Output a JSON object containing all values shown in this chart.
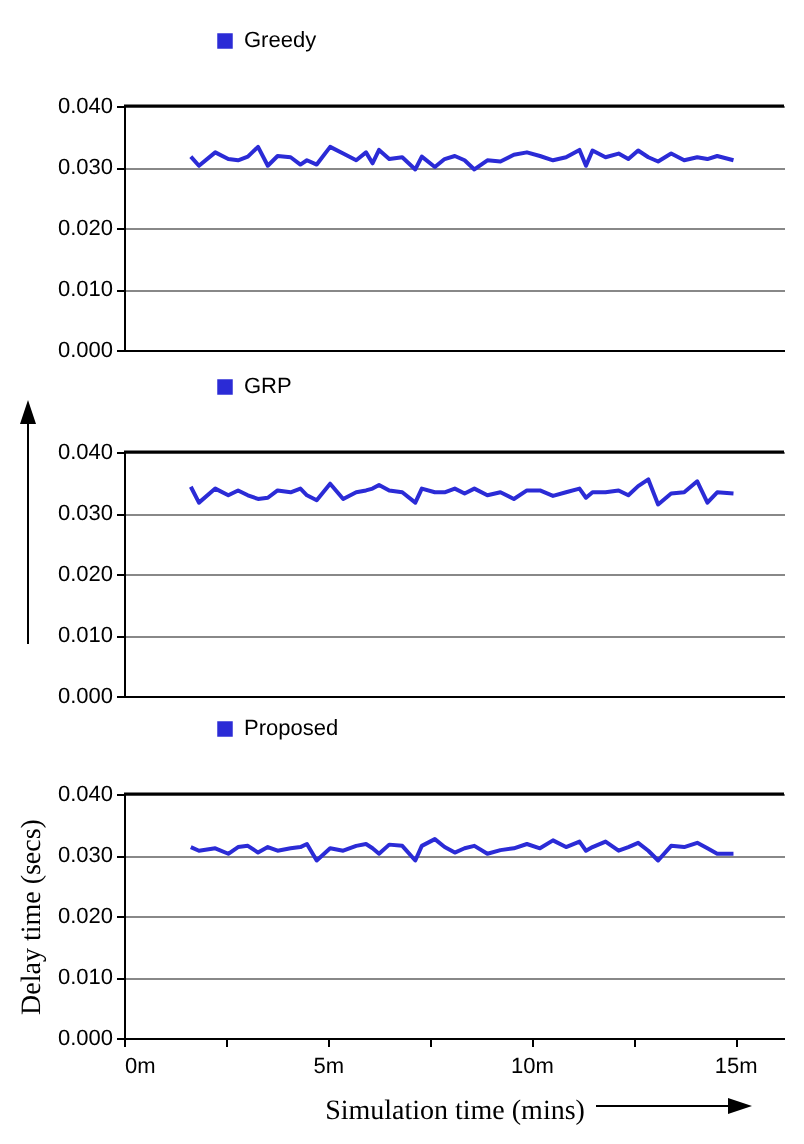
{
  "chart_data": [
    {
      "type": "line",
      "legend": "top",
      "grid": "y",
      "marker": "none",
      "line_style": "solid",
      "tick_labels": "y",
      "xlim": [
        0,
        16.2
      ],
      "ylim": [
        0,
        0.04
      ],
      "yticks": [
        {
          "value": 0,
          "label": "0.000"
        },
        {
          "value": 0.01,
          "label": "0.010"
        },
        {
          "value": 0.02,
          "label": "0.020"
        },
        {
          "value": 0.03,
          "label": "0.030"
        },
        {
          "value": 0.04,
          "label": "0.040"
        }
      ],
      "x": [
        1.64,
        1.84,
        2.24,
        2.56,
        2.8,
        3.04,
        3.29,
        3.53,
        3.77,
        4.09,
        4.33,
        4.49,
        4.73,
        5.06,
        5.38,
        5.7,
        5.94,
        6.1,
        6.26,
        6.51,
        6.83,
        7.15,
        7.31,
        7.63,
        7.87,
        8.12,
        8.36,
        8.6,
        8.92,
        9.24,
        9.57,
        9.89,
        10.21,
        10.53,
        10.85,
        11.18,
        11.34,
        11.5,
        11.82,
        12.14,
        12.38,
        12.62,
        12.87,
        13.11,
        13.43,
        13.75,
        14.07,
        14.32,
        14.56,
        14.96
      ],
      "series": [
        {
          "name": "Greedy",
          "color": "#2b2bd6",
          "values": [
            0.0317,
            0.0302,
            0.0324,
            0.0313,
            0.0311,
            0.0317,
            0.0333,
            0.0302,
            0.0318,
            0.0316,
            0.0304,
            0.0311,
            0.0304,
            0.0333,
            0.0322,
            0.0311,
            0.0324,
            0.0306,
            0.0328,
            0.0313,
            0.0316,
            0.0296,
            0.0317,
            0.03,
            0.0313,
            0.0318,
            0.0311,
            0.0296,
            0.0311,
            0.0309,
            0.032,
            0.0324,
            0.0318,
            0.0311,
            0.0316,
            0.0328,
            0.0302,
            0.0327,
            0.0316,
            0.0322,
            0.0313,
            0.0327,
            0.0316,
            0.0309,
            0.0322,
            0.0311,
            0.0316,
            0.0313,
            0.0318,
            0.0311
          ]
        }
      ]
    },
    {
      "type": "line",
      "legend": "top",
      "grid": "y",
      "marker": "none",
      "line_style": "solid",
      "tick_labels": "y",
      "xlim": [
        0,
        16.2
      ],
      "ylim": [
        0,
        0.04
      ],
      "yticks": [
        {
          "value": 0,
          "label": "0.000"
        },
        {
          "value": 0.01,
          "label": "0.010"
        },
        {
          "value": 0.02,
          "label": "0.020"
        },
        {
          "value": 0.03,
          "label": "0.030"
        },
        {
          "value": 0.04,
          "label": "0.040"
        }
      ],
      "x": [
        1.64,
        1.84,
        2.24,
        2.56,
        2.8,
        3.04,
        3.29,
        3.53,
        3.77,
        4.09,
        4.33,
        4.49,
        4.73,
        5.06,
        5.38,
        5.7,
        5.94,
        6.1,
        6.26,
        6.51,
        6.83,
        7.15,
        7.31,
        7.63,
        7.87,
        8.12,
        8.36,
        8.6,
        8.92,
        9.24,
        9.57,
        9.89,
        10.21,
        10.53,
        10.85,
        11.18,
        11.34,
        11.5,
        11.82,
        12.14,
        12.38,
        12.62,
        12.87,
        13.11,
        13.43,
        13.75,
        14.07,
        14.32,
        14.56,
        14.96
      ],
      "series": [
        {
          "name": "GRP",
          "color": "#2b2bd6",
          "values": [
            0.0343,
            0.0317,
            0.034,
            0.0329,
            0.0337,
            0.0329,
            0.0323,
            0.0325,
            0.0337,
            0.0334,
            0.034,
            0.0329,
            0.0321,
            0.0348,
            0.0323,
            0.0334,
            0.0337,
            0.034,
            0.0346,
            0.0337,
            0.0334,
            0.0317,
            0.034,
            0.0334,
            0.0334,
            0.034,
            0.0332,
            0.034,
            0.0329,
            0.0334,
            0.0323,
            0.0337,
            0.0337,
            0.0328,
            0.0334,
            0.034,
            0.0325,
            0.0334,
            0.0334,
            0.0337,
            0.0329,
            0.0344,
            0.0355,
            0.0314,
            0.0332,
            0.0334,
            0.0352,
            0.0317,
            0.0334,
            0.0332
          ]
        }
      ]
    },
    {
      "type": "line",
      "legend": "top",
      "grid": "y",
      "marker": "none",
      "line_style": "solid",
      "xlabel": "Simulation time (mins)",
      "ylabel": "Delay time (secs)",
      "xlim": [
        0,
        16.2
      ],
      "ylim": [
        0,
        0.04
      ],
      "xticks": [
        {
          "value": 0,
          "label": "0m"
        },
        {
          "value": 2.5,
          "label": null
        },
        {
          "value": 5,
          "label": "5m"
        },
        {
          "value": 7.5,
          "label": null
        },
        {
          "value": 10,
          "label": "10m"
        },
        {
          "value": 12.5,
          "label": null
        },
        {
          "value": 15,
          "label": "15m"
        }
      ],
      "yticks": [
        {
          "value": 0,
          "label": "0.000"
        },
        {
          "value": 0.01,
          "label": "0.010"
        },
        {
          "value": 0.02,
          "label": "0.020"
        },
        {
          "value": 0.03,
          "label": "0.030"
        },
        {
          "value": 0.04,
          "label": "0.040"
        }
      ],
      "x": [
        1.64,
        1.84,
        2.24,
        2.56,
        2.8,
        3.04,
        3.29,
        3.53,
        3.77,
        4.09,
        4.33,
        4.49,
        4.73,
        5.06,
        5.38,
        5.7,
        5.94,
        6.1,
        6.26,
        6.51,
        6.83,
        7.15,
        7.31,
        7.63,
        7.87,
        8.12,
        8.36,
        8.6,
        8.92,
        9.24,
        9.57,
        9.89,
        10.21,
        10.53,
        10.85,
        11.18,
        11.34,
        11.5,
        11.82,
        12.14,
        12.38,
        12.62,
        12.87,
        13.11,
        13.43,
        13.75,
        14.07,
        14.32,
        14.56,
        14.96
      ],
      "series": [
        {
          "name": "Proposed",
          "color": "#2b2bd6",
          "values": [
            0.0313,
            0.0307,
            0.0311,
            0.0302,
            0.0313,
            0.0315,
            0.0304,
            0.0313,
            0.0307,
            0.0311,
            0.0313,
            0.0318,
            0.0291,
            0.0311,
            0.0307,
            0.0315,
            0.0318,
            0.0311,
            0.0302,
            0.0317,
            0.0315,
            0.0291,
            0.0315,
            0.0326,
            0.0313,
            0.0304,
            0.0311,
            0.0315,
            0.0302,
            0.0308,
            0.0311,
            0.0318,
            0.0311,
            0.0324,
            0.0313,
            0.0322,
            0.0307,
            0.0313,
            0.0322,
            0.0307,
            0.0313,
            0.032,
            0.0307,
            0.0291,
            0.0315,
            0.0313,
            0.032,
            0.0311,
            0.0302,
            0.0302
          ]
        }
      ]
    }
  ]
}
